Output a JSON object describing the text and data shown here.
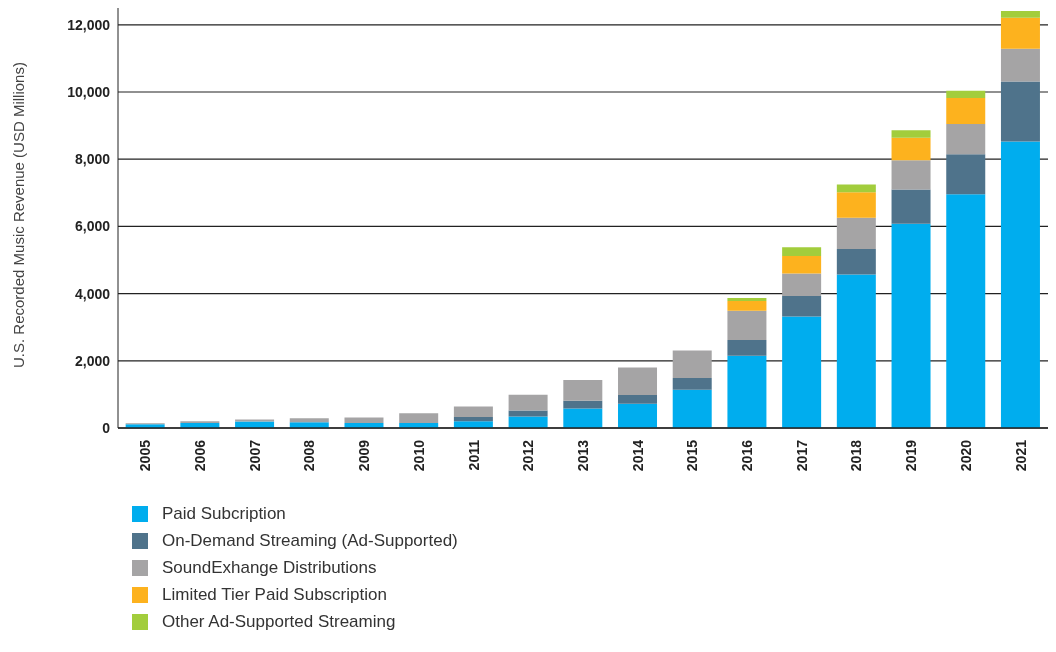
{
  "chart_data": {
    "type": "bar",
    "stacked": true,
    "ylabel": "U.S. Recorded Music Revenue (USD Millions)",
    "categories": [
      "2005",
      "2006",
      "2007",
      "2008",
      "2009",
      "2010",
      "2011",
      "2012",
      "2013",
      "2014",
      "2015",
      "2016",
      "2017",
      "2018",
      "2019",
      "2020",
      "2021"
    ],
    "series": [
      {
        "name": "Paid Subcription",
        "color": "#00adee",
        "values": [
          110,
          150,
          190,
          170,
          150,
          150,
          200,
          340,
          580,
          720,
          1140,
          2150,
          3320,
          4570,
          6080,
          6960,
          8530
        ]
      },
      {
        "name": "On-Demand Streaming (Ad-Supported)",
        "color": "#4f738b",
        "values": [
          null,
          null,
          null,
          null,
          null,
          null,
          130,
          180,
          230,
          260,
          350,
          470,
          610,
          760,
          1020,
          1190,
          1780
        ]
      },
      {
        "name": "SoundExhange Distributions",
        "color": "#a5a4a5",
        "values": [
          30,
          50,
          60,
          120,
          160,
          290,
          310,
          470,
          620,
          820,
          820,
          870,
          670,
          930,
          870,
          900,
          980
        ]
      },
      {
        "name": "Limited Tier Paid Subscription",
        "color": "#fdb21e",
        "values": [
          null,
          null,
          null,
          null,
          null,
          null,
          null,
          null,
          null,
          null,
          null,
          290,
          520,
          760,
          670,
          770,
          920
        ]
      },
      {
        "name": "Other Ad-Supported Streaming",
        "color": "#a2cd3c",
        "values": [
          null,
          null,
          null,
          null,
          null,
          null,
          null,
          null,
          null,
          null,
          null,
          90,
          260,
          230,
          220,
          220,
          200
        ]
      }
    ],
    "ylim": [
      0,
      12500
    ],
    "yticks": [
      0,
      {
        "value": 2000,
        "label": "2,000"
      },
      {
        "value": 4000,
        "label": "4,000"
      },
      {
        "value": 6000,
        "label": "6,000"
      },
      {
        "value": 8000,
        "label": "8,000"
      },
      {
        "value": 10000,
        "label": "10,000"
      },
      {
        "value": 12000,
        "label": "12,000"
      }
    ],
    "grid": "y",
    "legend": "bottom"
  }
}
